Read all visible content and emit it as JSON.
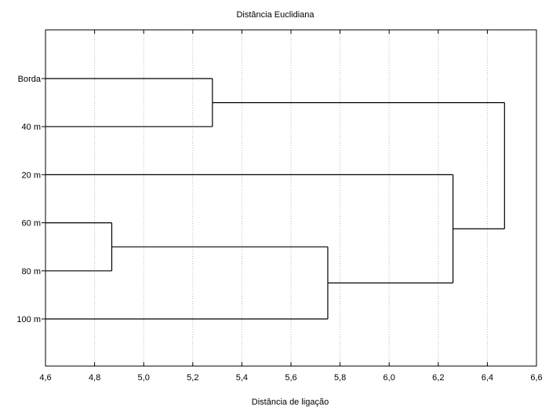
{
  "chart_data": {
    "type": "dendrogram",
    "title": "Distância Euclidiana",
    "xlabel": "Distância de ligação",
    "ylabel": "",
    "xlim": [
      4.6,
      6.6
    ],
    "xticks": [
      4.6,
      4.8,
      5.0,
      5.2,
      5.4,
      5.6,
      5.8,
      6.0,
      6.2,
      6.4,
      6.6
    ],
    "xtick_labels": [
      "4,6",
      "4,8",
      "5,0",
      "5,2",
      "5,4",
      "5,6",
      "5,8",
      "6,0",
      "6,2",
      "6,4",
      "6,6"
    ],
    "grid": true,
    "leaves": [
      "Borda",
      "40 m",
      "20 m",
      "60 m",
      "80 m",
      "100 m"
    ],
    "merges": [
      {
        "id": "m1",
        "children": [
          "60 m",
          "80 m"
        ],
        "distance": 4.87
      },
      {
        "id": "m2",
        "children": [
          "Borda",
          "40 m"
        ],
        "distance": 5.28
      },
      {
        "id": "m3",
        "children": [
          "m1",
          "100 m"
        ],
        "distance": 5.75
      },
      {
        "id": "m4",
        "children": [
          "20 m",
          "m3"
        ],
        "distance": 6.26
      },
      {
        "id": "m5",
        "children": [
          "m2",
          "m4"
        ],
        "distance": 6.47
      }
    ]
  }
}
